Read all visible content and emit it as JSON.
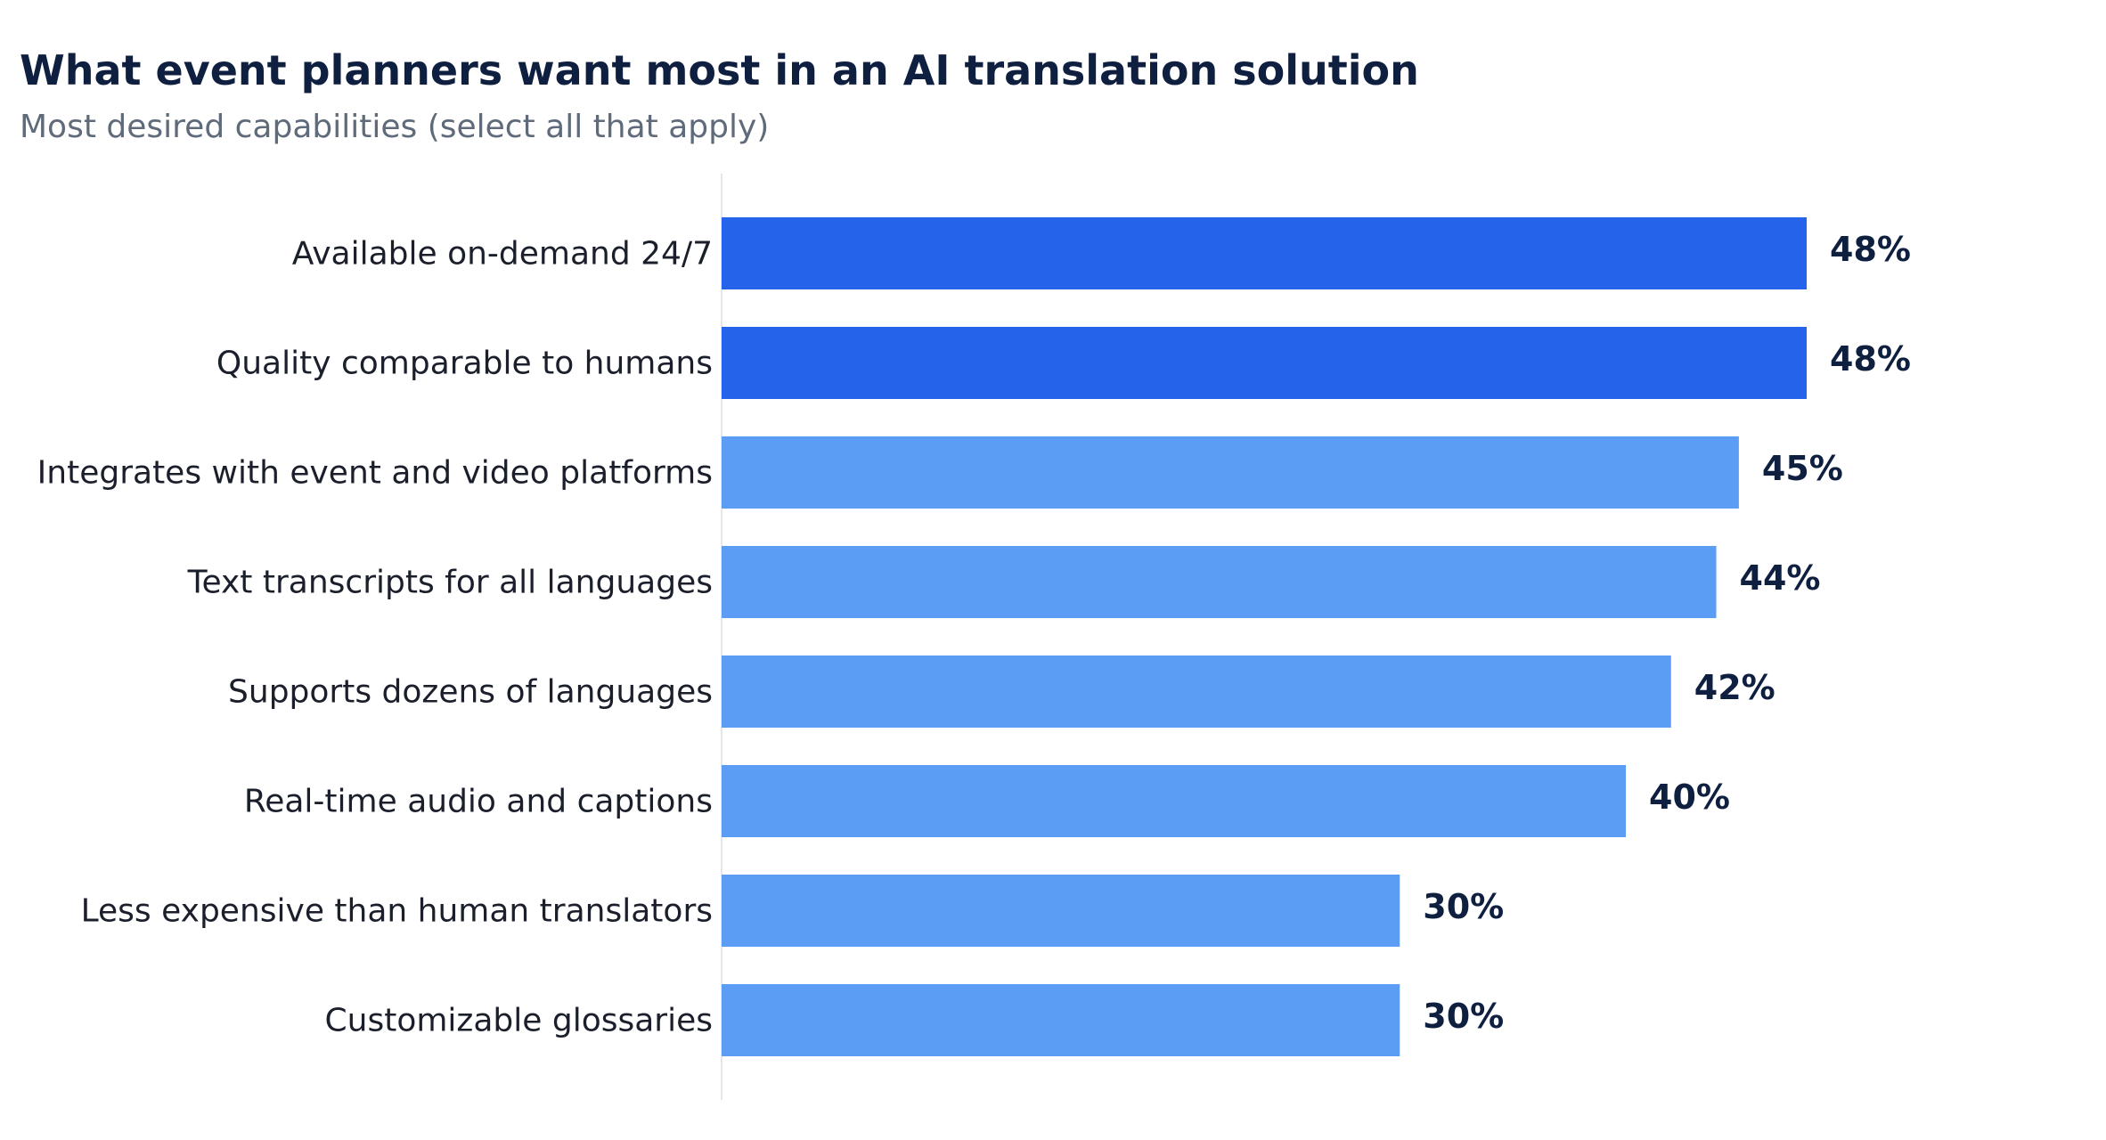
{
  "title": "What event planners want most in an AI translation solution",
  "subtitle": "Most desired capabilities (select all that apply)",
  "colors": {
    "highlight": "#2563eb",
    "default": "#5b9cf5",
    "value_text": "#0f1f40",
    "axis": "#e5e7eb"
  },
  "chart_data": {
    "type": "bar",
    "orientation": "horizontal",
    "categories": [
      "Available on-demand 24/7",
      "Quality comparable to humans",
      "Integrates with event and video platforms",
      "Text transcripts for all languages",
      "Supports dozens of languages",
      "Real-time audio and captions",
      "Less expensive than human translators",
      "Customizable glossaries"
    ],
    "values": [
      48,
      48,
      45,
      44,
      42,
      40,
      30,
      30
    ],
    "value_labels": [
      "48%",
      "48%",
      "45%",
      "44%",
      "42%",
      "40%",
      "30%",
      "30%"
    ],
    "highlighted": [
      true,
      true,
      false,
      false,
      false,
      false,
      false,
      false
    ],
    "unit": "%",
    "xlim": [
      0,
      50
    ],
    "grid": false,
    "legend": "none"
  }
}
